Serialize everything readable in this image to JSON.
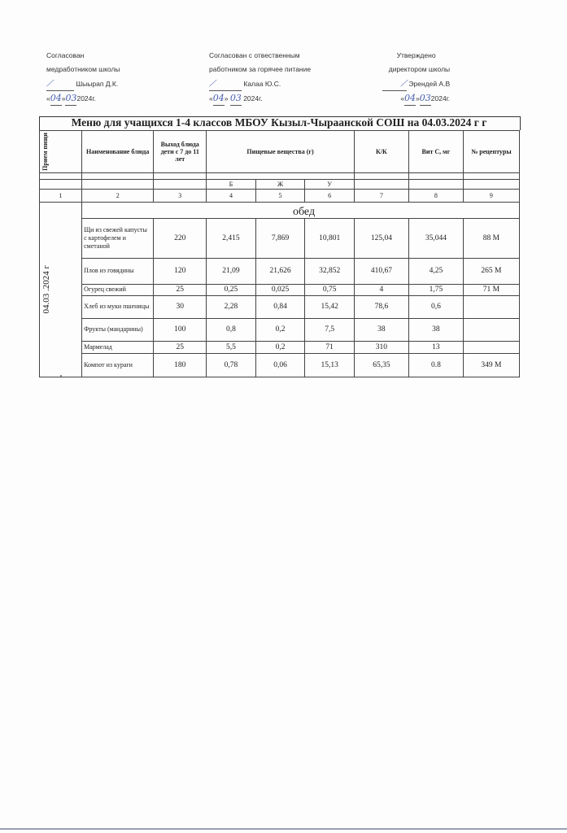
{
  "approvals": [
    {
      "line1": "Согласован",
      "line2": "медработником школы",
      "name": "Шыырап Д.К.",
      "date_day": "04",
      "date_month": "03",
      "year": "2024г."
    },
    {
      "line1": "Согласован с отвественным",
      "line2": "работником за горячее питание",
      "name": "Калаа Ю.С.",
      "date_day": "04",
      "date_month": "03",
      "year": "2024г."
    },
    {
      "line1": "Утверждено",
      "line2": "директором школы",
      "name": "Эрендей А.В",
      "date_day": "04",
      "date_month": "03",
      "year": "2024г."
    }
  ],
  "title": "Меню для учащихся 1-4 классов МБОУ Кызыл-Чыраанской СОШ на 04.03.2024 г г",
  "headers": {
    "meal": "Прием пищи",
    "dish": "Наименование блюда",
    "portion": "Выход блюда дети с 7 до 11 лет",
    "nutrients": "Пищевые вещества (г)",
    "kcal": "К/К",
    "vitc": "Вит С, мг",
    "recipe": "№ рецептуры",
    "b": "Б",
    "zh": "Ж",
    "u": "У"
  },
  "col_numbers": [
    "1",
    "2",
    "3",
    "4",
    "5",
    "6",
    "7",
    "8",
    "9"
  ],
  "section": "обед",
  "date": "04.03 .2024 г",
  "rows": [
    {
      "dish": "Щи из свежей капусты с картофелем и сметаной",
      "portion": "220",
      "b": "2,415",
      "zh": "7,869",
      "u": "10,801",
      "kcal": "125,04",
      "vitc": "35,044",
      "recipe": "88 М"
    },
    {
      "dish": "Плов из говядины",
      "portion": "120",
      "b": "21,09",
      "zh": "21,626",
      "u": "32,852",
      "kcal": "410,67",
      "vitc": "4,25",
      "recipe": "265 М"
    },
    {
      "dish": "Огурец свежий",
      "portion": "25",
      "b": "0,25",
      "zh": "0,025",
      "u": "0,75",
      "kcal": "4",
      "vitc": "1,75",
      "recipe": "71 М"
    },
    {
      "dish": "Хлеб из муки пшеницы",
      "portion": "30",
      "b": "2,28",
      "zh": "0,84",
      "u": "15,42",
      "kcal": "78,6",
      "vitc": "0,6",
      "recipe": ""
    },
    {
      "dish": "Фрукты (мандарины)",
      "portion": "100",
      "b": "0,8",
      "zh": "0,2",
      "u": "7,5",
      "kcal": "38",
      "vitc": "38",
      "recipe": ""
    },
    {
      "dish": "Мармелад",
      "portion": "25",
      "b": "5,5",
      "zh": "0,2",
      "u": "71",
      "kcal": "310",
      "vitc": "13",
      "recipe": ""
    },
    {
      "dish": "Компот из кураги",
      "portion": "180",
      "b": "0,78",
      "zh": "0,06",
      "u": "15,13",
      "kcal": "65,35",
      "vitc": "0.8",
      "recipe": "349 М"
    }
  ]
}
